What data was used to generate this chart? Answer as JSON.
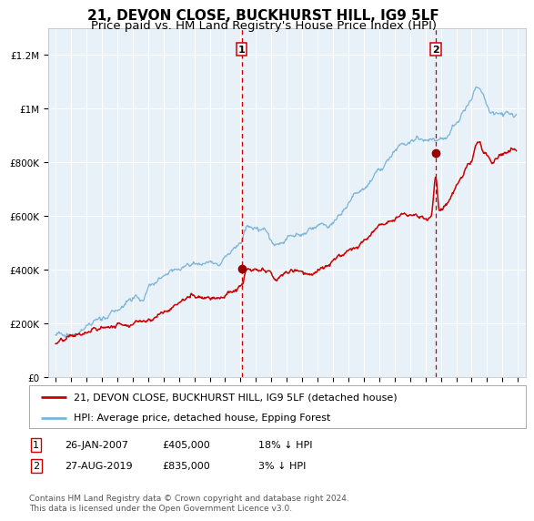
{
  "title": "21, DEVON CLOSE, BUCKHURST HILL, IG9 5LF",
  "subtitle": "Price paid vs. HM Land Registry's House Price Index (HPI)",
  "bg_color": "#e8f0f8",
  "hpi_color": "#7ab4d8",
  "price_color": "#cc0000",
  "marker_color": "#990000",
  "vline_color": "#cc0000",
  "grid_color": "#ffffff",
  "annotation_box_color": "#cc0000",
  "sale1_date_num": 2007.07,
  "sale1_price": 405000,
  "sale1_label": "1",
  "sale2_date_num": 2019.66,
  "sale2_price": 835000,
  "sale2_label": "2",
  "legend_line1": "21, DEVON CLOSE, BUCKHURST HILL, IG9 5LF (detached house)",
  "legend_line2": "HPI: Average price, detached house, Epping Forest",
  "footer": "Contains HM Land Registry data © Crown copyright and database right 2024.\nThis data is licensed under the Open Government Licence v3.0.",
  "ylim": [
    0,
    1300000
  ],
  "xlim": [
    1994.5,
    2025.5
  ],
  "yticks": [
    0,
    200000,
    400000,
    600000,
    800000,
    1000000,
    1200000
  ],
  "ytick_labels": [
    "£0",
    "£200K",
    "£400K",
    "£600K",
    "£800K",
    "£1M",
    "£1.2M"
  ],
  "xticks": [
    1995,
    1996,
    1997,
    1998,
    1999,
    2000,
    2001,
    2002,
    2003,
    2004,
    2005,
    2006,
    2007,
    2008,
    2009,
    2010,
    2011,
    2012,
    2013,
    2014,
    2015,
    2016,
    2017,
    2018,
    2019,
    2020,
    2021,
    2022,
    2023,
    2024,
    2025
  ],
  "title_fontsize": 11,
  "subtitle_fontsize": 9.5,
  "tick_fontsize": 7.5,
  "legend_fontsize": 8,
  "note_fontsize": 8,
  "footer_fontsize": 6.5
}
